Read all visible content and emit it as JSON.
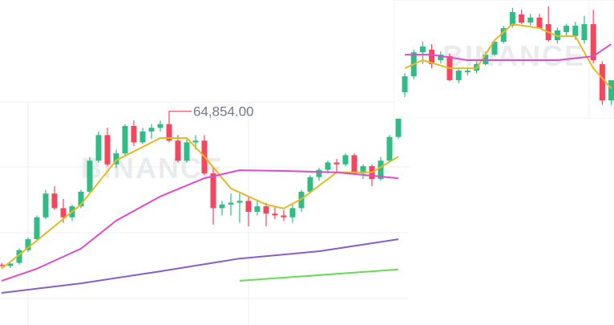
{
  "chart_data": [
    {
      "type": "candlestick",
      "watermark": "BINANCE",
      "high_label": "64,854.00",
      "high_label_index": 19,
      "ylim": [
        59000,
        67900
      ],
      "up_color": "#2ebd85",
      "down_color": "#f6465d",
      "candles": {
        "open": [
          60650,
          60620,
          60700,
          61050,
          61350,
          61950,
          62600,
          62200,
          61950,
          62250,
          62650,
          63500,
          64200,
          63400,
          63700,
          64450,
          64000,
          64300,
          64400,
          64500,
          64050,
          63500,
          64000,
          64050,
          63150,
          62200,
          62300,
          62350,
          62400,
          62100,
          62250,
          62050,
          62000,
          61950,
          62200,
          62650,
          63050,
          63250,
          63450,
          63400,
          63650,
          63150,
          63350,
          63000,
          63500,
          64150
        ],
        "high": [
          60700,
          60700,
          61100,
          61400,
          62000,
          62700,
          62800,
          62450,
          62300,
          62700,
          63600,
          64300,
          64400,
          63800,
          64500,
          64600,
          64400,
          64500,
          64600,
          64854,
          64200,
          64100,
          64200,
          64200,
          63300,
          62400,
          62600,
          62600,
          62500,
          62400,
          62350,
          62250,
          62150,
          62300,
          62700,
          63100,
          63300,
          63500,
          63550,
          63700,
          63700,
          63400,
          63400,
          63600,
          64200,
          65000
        ],
        "low": [
          60580,
          60560,
          60650,
          61000,
          61300,
          61900,
          62150,
          61800,
          61850,
          62200,
          62600,
          63450,
          63350,
          63300,
          63650,
          63900,
          63950,
          64100,
          64300,
          64000,
          63450,
          63450,
          63800,
          63100,
          61750,
          62000,
          62000,
          61800,
          61700,
          62000,
          61700,
          61900,
          61850,
          61800,
          62100,
          62600,
          62950,
          63150,
          63200,
          63350,
          63100,
          63000,
          62800,
          62950,
          63450,
          64100
        ],
        "close": [
          60620,
          60680,
          61050,
          61350,
          61950,
          62600,
          62200,
          61950,
          62250,
          62650,
          63500,
          64200,
          63400,
          63700,
          64450,
          64000,
          64300,
          64400,
          64500,
          64050,
          63500,
          64000,
          64050,
          63150,
          62200,
          62300,
          62350,
          62400,
          62100,
          62250,
          62050,
          62000,
          61950,
          62200,
          62650,
          63050,
          63250,
          63450,
          63400,
          63650,
          63150,
          63350,
          63000,
          63500,
          64150,
          64850
        ]
      },
      "lines": [
        {
          "color": "#e8b923",
          "x": [
            0,
            4,
            9,
            13,
            18,
            21,
            23,
            26,
            30,
            32,
            34,
            38,
            42,
            45
          ],
          "values": [
            60540,
            61310,
            62300,
            63510,
            64120,
            64120,
            63610,
            62740,
            62300,
            62190,
            62450,
            63180,
            63180,
            63610
          ]
        },
        {
          "color": "#e04bcb",
          "x": [
            0,
            4,
            9,
            13,
            18,
            23,
            27,
            32,
            38,
            45
          ],
          "values": [
            60210,
            60540,
            61090,
            61860,
            62520,
            63020,
            63240,
            63220,
            63180,
            63020
          ]
        },
        {
          "color": "#8e5cc8",
          "x": [
            0,
            9,
            18,
            27,
            36,
            45
          ],
          "values": [
            59880,
            60140,
            60470,
            60820,
            61020,
            61350
          ]
        },
        {
          "color": "#66dd55",
          "x": [
            27,
            45
          ],
          "values": [
            60210,
            60520
          ]
        }
      ]
    },
    {
      "type": "candlestick",
      "watermark": "BINANCE",
      "ylim": [
        64000,
        70000
      ],
      "up_color": "#2ebd85",
      "down_color": "#f6465d",
      "candles": {
        "open": [
          65340,
          66150,
          67360,
          67490,
          66960,
          67160,
          65950,
          66350,
          66430,
          66760,
          67240,
          67890,
          68700,
          69270,
          68860,
          69110,
          68780,
          67970,
          68380,
          68180,
          67970,
          68780,
          66760,
          64930
        ],
        "high": [
          66300,
          67500,
          67890,
          67770,
          67400,
          67300,
          66500,
          66600,
          66900,
          67400,
          68000,
          68700,
          69600,
          69500,
          69300,
          69300,
          69680,
          68600,
          68800,
          68900,
          69200,
          69500,
          66900,
          65500
        ],
        "low": [
          65100,
          66000,
          66760,
          66550,
          66800,
          65900,
          65800,
          66200,
          66300,
          66700,
          67150,
          67800,
          68600,
          68800,
          68700,
          68550,
          67900,
          67800,
          68200,
          68000,
          67800,
          66800,
          64700,
          64700
        ],
        "close": [
          66150,
          67360,
          67650,
          66760,
          67240,
          65950,
          66430,
          66430,
          66760,
          67240,
          67890,
          68580,
          69390,
          68860,
          69110,
          68580,
          67970,
          68460,
          68700,
          68700,
          68780,
          66960,
          64930,
          65950
        ]
      },
      "lines": [
        {
          "color": "#e8b923",
          "x": [
            0,
            2,
            5,
            8,
            10,
            12,
            15,
            17,
            19,
            21,
            23
          ],
          "values": [
            66550,
            66960,
            66550,
            66550,
            67970,
            68780,
            68580,
            68170,
            68170,
            66550,
            65540
          ]
        },
        {
          "color": "#e04bcb",
          "x": [
            0,
            3,
            7,
            12,
            17,
            21,
            23
          ],
          "values": [
            67240,
            67240,
            66960,
            66960,
            66960,
            67160,
            67770
          ]
        }
      ]
    }
  ]
}
